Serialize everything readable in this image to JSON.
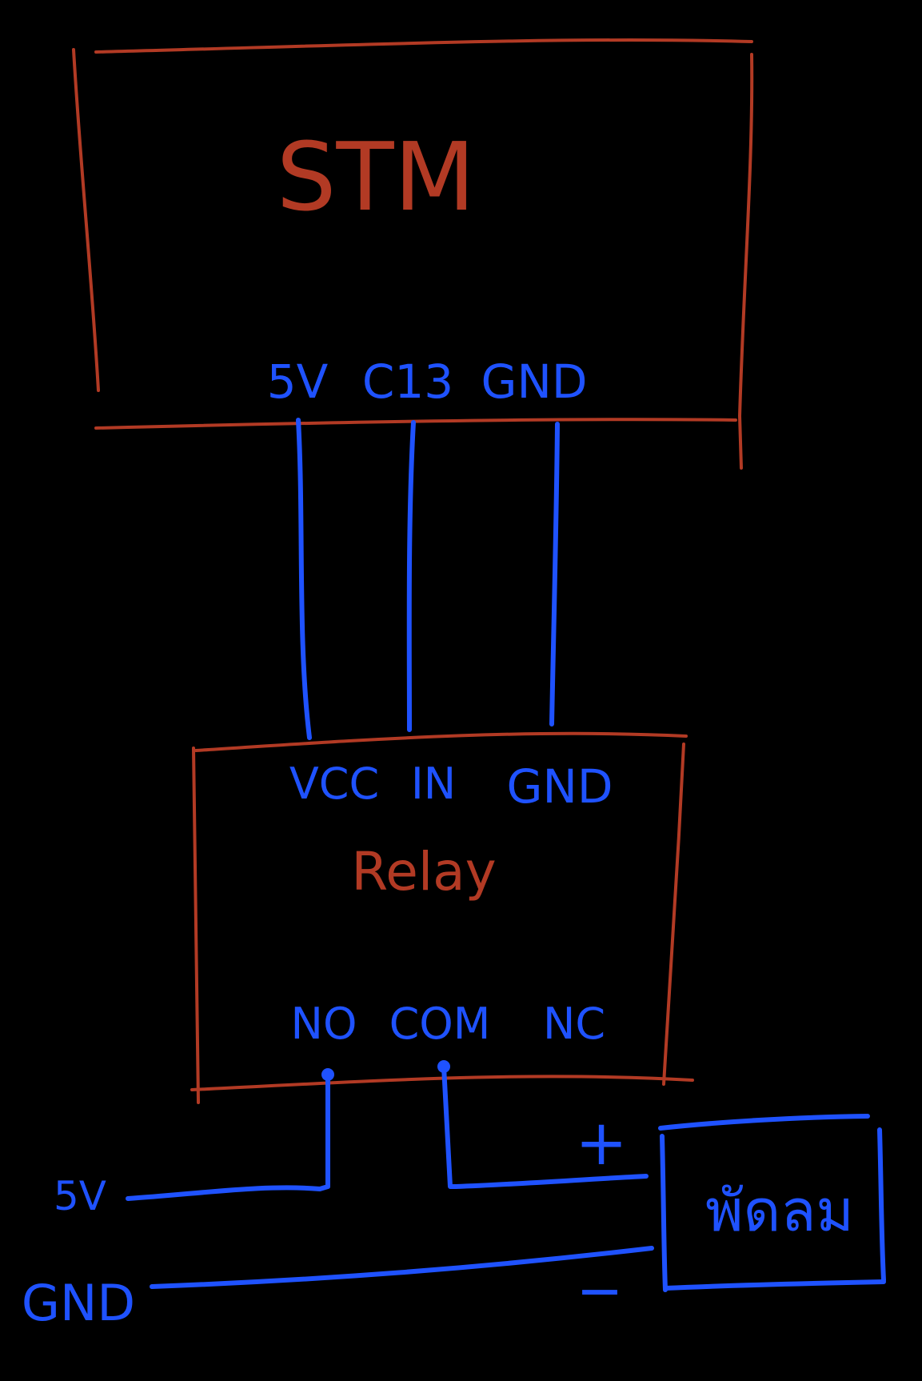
{
  "colors": {
    "background": "#000000",
    "block": "#b23a24",
    "wire": "#1f52ff"
  },
  "stm": {
    "title": "STM",
    "pins": {
      "vcc": "5V",
      "signal": "C13",
      "ground": "GND"
    }
  },
  "relay": {
    "title": "Relay",
    "input_pins": {
      "vcc": "VCC",
      "in": "IN",
      "ground": "GND"
    },
    "output_pins": {
      "no": "NO",
      "com": "COM",
      "nc": "NC"
    }
  },
  "supply": {
    "positive": "5V",
    "ground": "GND"
  },
  "fan": {
    "label": "พัดลม",
    "plus": "+",
    "minus": "−"
  }
}
